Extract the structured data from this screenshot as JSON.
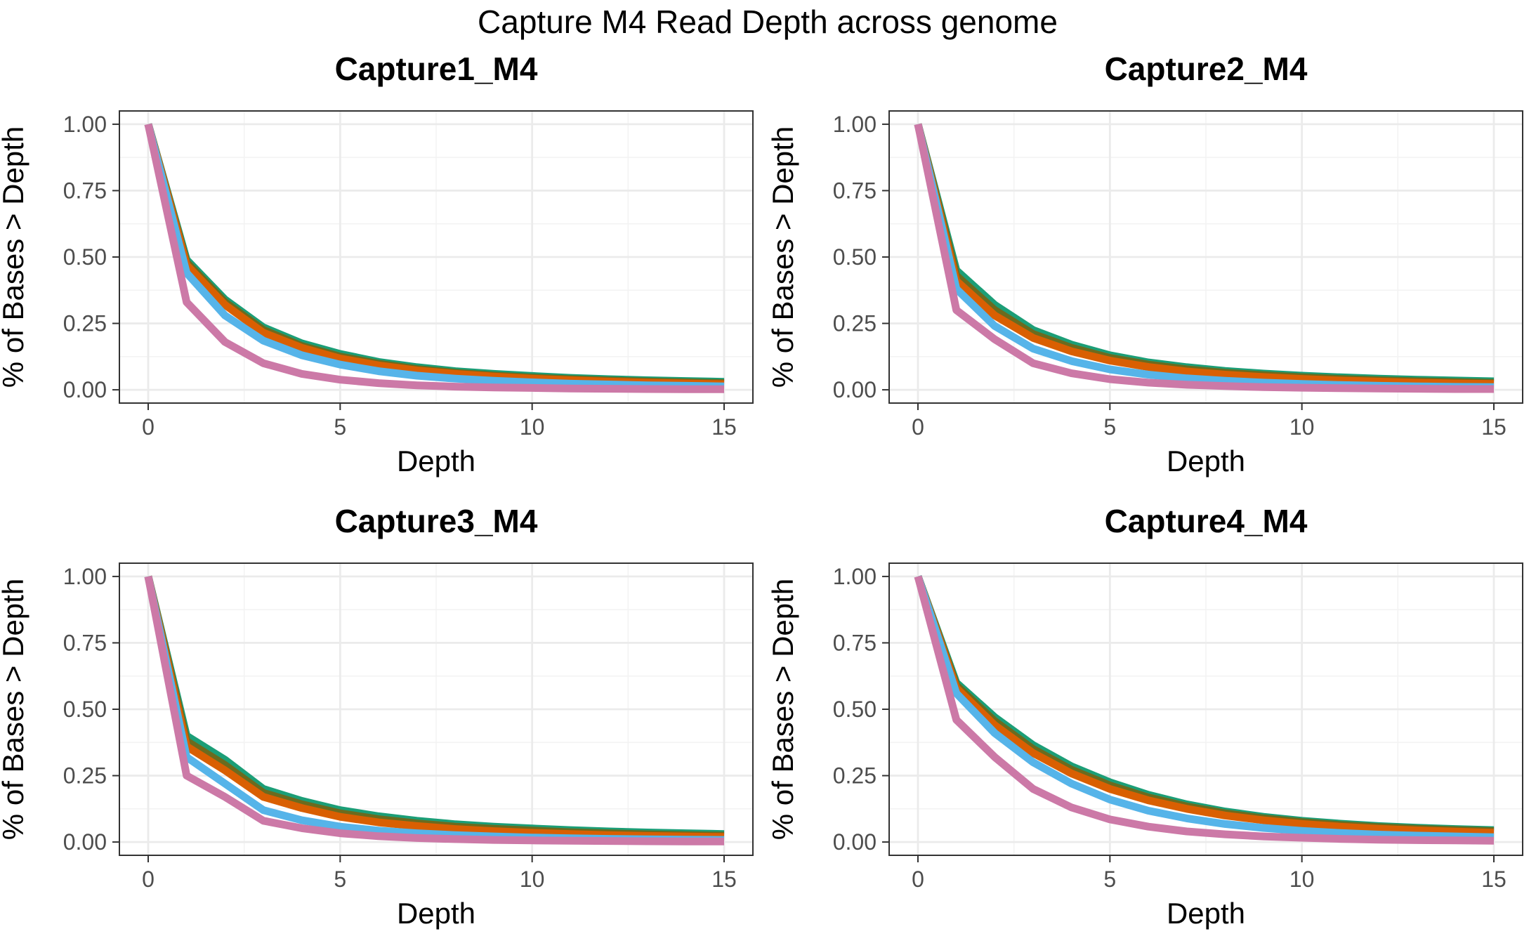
{
  "figure": {
    "title": "Capture M4 Read Depth across genome"
  },
  "colors": {
    "series": [
      "#1b9e77",
      "#6b6b1f",
      "#d95f02",
      "#56b4e9",
      "#cc79a7"
    ]
  },
  "chart_data": [
    {
      "type": "line",
      "title": "Capture1_M4",
      "xlabel": "Depth",
      "ylabel": "% of Bases > Depth",
      "xlim": [
        -0.75,
        15.75
      ],
      "ylim": [
        -0.05,
        1.05
      ],
      "x_ticks": [
        0,
        5,
        10,
        15
      ],
      "y_ticks": [
        0.0,
        0.25,
        0.5,
        0.75,
        1.0
      ],
      "y_tick_labels": [
        "0.00",
        "0.25",
        "0.50",
        "0.75",
        "1.00"
      ],
      "grid": true,
      "x": [
        0,
        1,
        2,
        3,
        4,
        5,
        6,
        7,
        8,
        9,
        10,
        11,
        12,
        13,
        14,
        15
      ],
      "series": [
        {
          "color": "#1b9e77",
          "values": [
            1.0,
            0.49,
            0.34,
            0.235,
            0.175,
            0.135,
            0.105,
            0.085,
            0.07,
            0.06,
            0.052,
            0.045,
            0.04,
            0.036,
            0.033,
            0.03
          ]
        },
        {
          "color": "#6b6b1f",
          "values": [
            1.0,
            0.48,
            0.33,
            0.225,
            0.165,
            0.125,
            0.098,
            0.078,
            0.064,
            0.054,
            0.046,
            0.04,
            0.035,
            0.031,
            0.028,
            0.025
          ]
        },
        {
          "color": "#d95f02",
          "values": [
            1.0,
            0.47,
            0.32,
            0.215,
            0.158,
            0.118,
            0.092,
            0.073,
            0.06,
            0.05,
            0.042,
            0.036,
            0.031,
            0.027,
            0.024,
            0.021
          ]
        },
        {
          "color": "#56b4e9",
          "values": [
            1.0,
            0.44,
            0.28,
            0.185,
            0.13,
            0.095,
            0.07,
            0.053,
            0.042,
            0.034,
            0.028,
            0.023,
            0.02,
            0.017,
            0.015,
            0.013
          ]
        },
        {
          "color": "#cc79a7",
          "values": [
            1.0,
            0.33,
            0.18,
            0.1,
            0.06,
            0.038,
            0.025,
            0.017,
            0.012,
            0.009,
            0.007,
            0.005,
            0.004,
            0.003,
            0.002,
            0.002
          ]
        }
      ]
    },
    {
      "type": "line",
      "title": "Capture2_M4",
      "xlabel": "Depth",
      "ylabel": "% of Bases > Depth",
      "xlim": [
        -0.75,
        15.75
      ],
      "ylim": [
        -0.05,
        1.05
      ],
      "x_ticks": [
        0,
        5,
        10,
        15
      ],
      "y_ticks": [
        0.0,
        0.25,
        0.5,
        0.75,
        1.0
      ],
      "y_tick_labels": [
        "0.00",
        "0.25",
        "0.50",
        "0.75",
        "1.00"
      ],
      "grid": true,
      "x": [
        0,
        1,
        2,
        3,
        4,
        5,
        6,
        7,
        8,
        9,
        10,
        11,
        12,
        13,
        14,
        15
      ],
      "series": [
        {
          "color": "#1b9e77",
          "values": [
            1.0,
            0.45,
            0.32,
            0.225,
            0.17,
            0.13,
            0.103,
            0.085,
            0.071,
            0.061,
            0.053,
            0.047,
            0.042,
            0.038,
            0.035,
            0.032
          ]
        },
        {
          "color": "#6b6b1f",
          "values": [
            1.0,
            0.43,
            0.3,
            0.21,
            0.158,
            0.12,
            0.095,
            0.077,
            0.064,
            0.055,
            0.047,
            0.041,
            0.036,
            0.032,
            0.029,
            0.026
          ]
        },
        {
          "color": "#d95f02",
          "values": [
            1.0,
            0.41,
            0.28,
            0.195,
            0.145,
            0.11,
            0.086,
            0.069,
            0.057,
            0.048,
            0.041,
            0.035,
            0.031,
            0.027,
            0.024,
            0.022
          ]
        },
        {
          "color": "#56b4e9",
          "values": [
            1.0,
            0.38,
            0.24,
            0.155,
            0.108,
            0.077,
            0.057,
            0.043,
            0.034,
            0.027,
            0.022,
            0.018,
            0.015,
            0.013,
            0.011,
            0.01
          ]
        },
        {
          "color": "#cc79a7",
          "values": [
            1.0,
            0.3,
            0.19,
            0.1,
            0.062,
            0.04,
            0.027,
            0.019,
            0.014,
            0.01,
            0.008,
            0.006,
            0.005,
            0.004,
            0.003,
            0.003
          ]
        }
      ]
    },
    {
      "type": "line",
      "title": "Capture3_M4",
      "xlabel": "Depth",
      "ylabel": "% of Bases > Depth",
      "xlim": [
        -0.75,
        15.75
      ],
      "ylim": [
        -0.05,
        1.05
      ],
      "x_ticks": [
        0,
        5,
        10,
        15
      ],
      "y_ticks": [
        0.0,
        0.25,
        0.5,
        0.75,
        1.0
      ],
      "y_tick_labels": [
        "0.00",
        "0.25",
        "0.50",
        "0.75",
        "1.00"
      ],
      "grid": true,
      "x": [
        0,
        1,
        2,
        3,
        4,
        5,
        6,
        7,
        8,
        9,
        10,
        11,
        12,
        13,
        14,
        15
      ],
      "series": [
        {
          "color": "#1b9e77",
          "values": [
            1.0,
            0.4,
            0.31,
            0.2,
            0.155,
            0.12,
            0.097,
            0.08,
            0.067,
            0.058,
            0.051,
            0.045,
            0.04,
            0.036,
            0.033,
            0.03
          ]
        },
        {
          "color": "#6b6b1f",
          "values": [
            1.0,
            0.38,
            0.29,
            0.185,
            0.142,
            0.108,
            0.086,
            0.07,
            0.058,
            0.05,
            0.043,
            0.037,
            0.033,
            0.029,
            0.026,
            0.024
          ]
        },
        {
          "color": "#d95f02",
          "values": [
            1.0,
            0.36,
            0.27,
            0.17,
            0.128,
            0.095,
            0.074,
            0.06,
            0.049,
            0.041,
            0.035,
            0.03,
            0.026,
            0.023,
            0.021,
            0.019
          ]
        },
        {
          "color": "#56b4e9",
          "values": [
            1.0,
            0.32,
            0.22,
            0.12,
            0.082,
            0.058,
            0.043,
            0.033,
            0.026,
            0.021,
            0.017,
            0.014,
            0.012,
            0.01,
            0.009,
            0.008
          ]
        },
        {
          "color": "#cc79a7",
          "values": [
            1.0,
            0.25,
            0.17,
            0.08,
            0.052,
            0.033,
            0.022,
            0.015,
            0.011,
            0.008,
            0.006,
            0.005,
            0.004,
            0.003,
            0.002,
            0.002
          ]
        }
      ]
    },
    {
      "type": "line",
      "title": "Capture4_M4",
      "xlabel": "Depth",
      "ylabel": "% of Bases > Depth",
      "xlim": [
        -0.75,
        15.75
      ],
      "ylim": [
        -0.05,
        1.05
      ],
      "x_ticks": [
        0,
        5,
        10,
        15
      ],
      "y_ticks": [
        0.0,
        0.25,
        0.5,
        0.75,
        1.0
      ],
      "y_tick_labels": [
        "0.00",
        "0.25",
        "0.50",
        "0.75",
        "1.00"
      ],
      "grid": true,
      "x": [
        0,
        1,
        2,
        3,
        4,
        5,
        6,
        7,
        8,
        9,
        10,
        11,
        12,
        13,
        14,
        15
      ],
      "series": [
        {
          "color": "#1b9e77",
          "values": [
            1.0,
            0.6,
            0.47,
            0.365,
            0.285,
            0.225,
            0.178,
            0.142,
            0.115,
            0.095,
            0.08,
            0.069,
            0.06,
            0.054,
            0.049,
            0.045
          ]
        },
        {
          "color": "#6b6b1f",
          "values": [
            1.0,
            0.59,
            0.455,
            0.35,
            0.272,
            0.213,
            0.168,
            0.134,
            0.108,
            0.089,
            0.075,
            0.064,
            0.056,
            0.05,
            0.045,
            0.041
          ]
        },
        {
          "color": "#d95f02",
          "values": [
            1.0,
            0.58,
            0.44,
            0.335,
            0.258,
            0.2,
            0.157,
            0.125,
            0.1,
            0.082,
            0.068,
            0.058,
            0.05,
            0.044,
            0.039,
            0.035
          ]
        },
        {
          "color": "#56b4e9",
          "values": [
            1.0,
            0.56,
            0.41,
            0.3,
            0.22,
            0.16,
            0.118,
            0.089,
            0.068,
            0.053,
            0.042,
            0.034,
            0.028,
            0.024,
            0.021,
            0.018
          ]
        },
        {
          "color": "#cc79a7",
          "values": [
            1.0,
            0.46,
            0.32,
            0.2,
            0.13,
            0.085,
            0.058,
            0.04,
            0.029,
            0.021,
            0.016,
            0.012,
            0.009,
            0.007,
            0.006,
            0.005
          ]
        }
      ]
    }
  ]
}
